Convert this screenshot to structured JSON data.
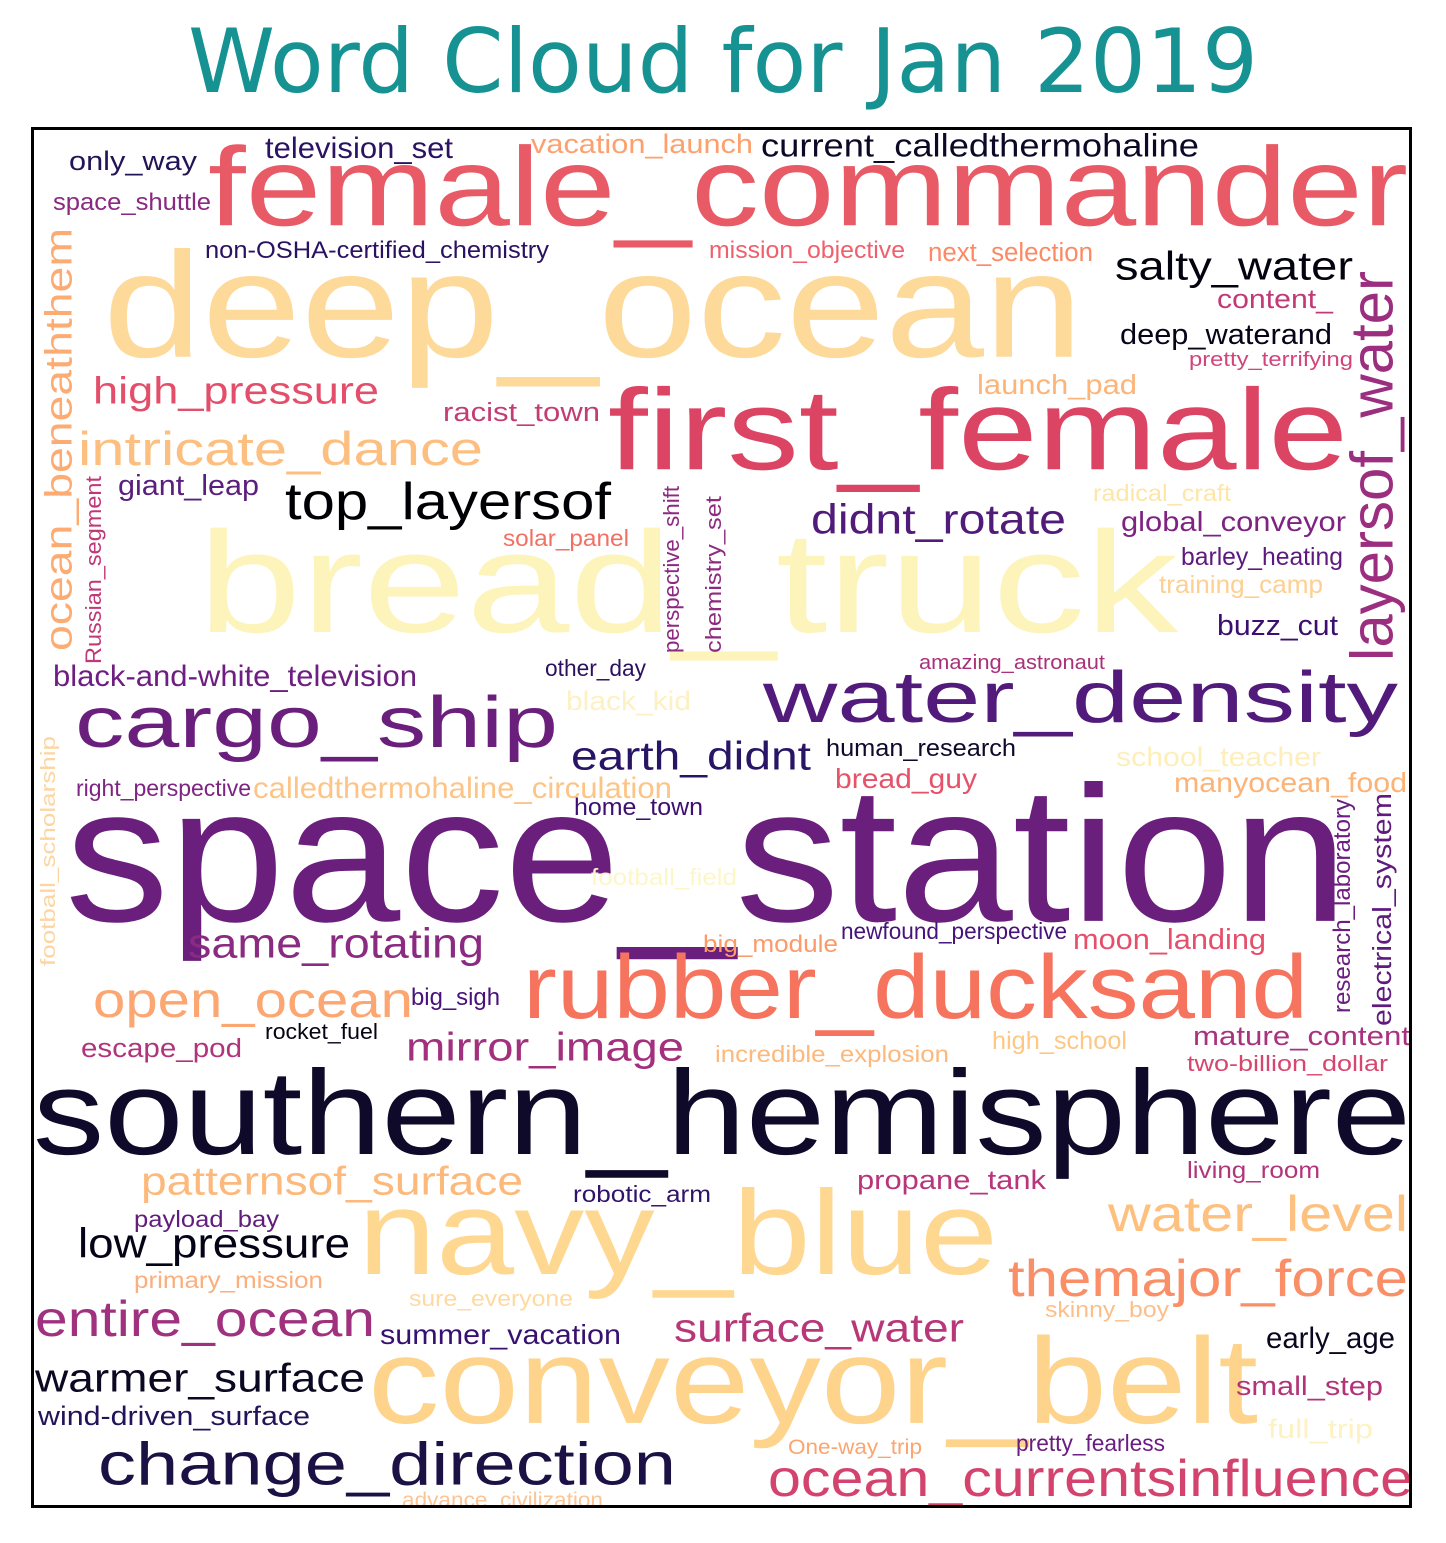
{
  "title": "Word Cloud for Jan 2019",
  "words": [
    {
      "text": "female_commander",
      "color": "#e85a66"
    },
    {
      "text": "deep_ocean",
      "color": "#fdd99a"
    },
    {
      "text": "first_female",
      "color": "#dc4463"
    },
    {
      "text": "bread_truck",
      "color": "#fdf4bc"
    },
    {
      "text": "space_station",
      "color": "#6b1f7d"
    },
    {
      "text": "water_density",
      "color": "#521a7a"
    },
    {
      "text": "cargo_ship",
      "color": "#6a1f7d"
    },
    {
      "text": "rubber_ducksand",
      "color": "#f6735e"
    },
    {
      "text": "southern_hemisphere",
      "color": "#0f0a2a"
    },
    {
      "text": "navy_blue",
      "color": "#fed891"
    },
    {
      "text": "conveyor_belt",
      "color": "#fed38b"
    },
    {
      "text": "change_direction",
      "color": "#1b1144"
    },
    {
      "text": "ocean_currentsinfluence",
      "color": "#d4436e"
    },
    {
      "text": "themajor_force",
      "color": "#f98e67"
    },
    {
      "text": "water_level",
      "color": "#fdc07e"
    },
    {
      "text": "entire_ocean",
      "color": "#a0317e"
    },
    {
      "text": "warmer_surface",
      "color": "#0b0822"
    },
    {
      "text": "low_pressure",
      "color": "#050416"
    },
    {
      "text": "patternsof_surface",
      "color": "#fdb97b"
    },
    {
      "text": "open_ocean",
      "color": "#fca671"
    },
    {
      "text": "same_rotating",
      "color": "#8a2a81"
    },
    {
      "text": "intricate_dance",
      "color": "#fdbf80"
    },
    {
      "text": "high_pressure",
      "color": "#e34f6a"
    },
    {
      "text": "top_layersof",
      "color": "#000004"
    },
    {
      "text": "didnt_rotate",
      "color": "#511b7a"
    },
    {
      "text": "salty_water",
      "color": "#03020f"
    },
    {
      "text": "surface_water",
      "color": "#b73779"
    },
    {
      "text": "mirror_image",
      "color": "#a3307e"
    },
    {
      "text": "earth_didnt",
      "color": "#281565"
    },
    {
      "text": "layersof_water",
      "color": "#9b2e7f"
    },
    {
      "text": "ocean_beneaththem",
      "color": "#fcac72"
    },
    {
      "text": "only_way",
      "color": "#231457"
    },
    {
      "text": "television_set",
      "color": "#2c1263"
    },
    {
      "text": "vacation_launch",
      "color": "#fca16e"
    },
    {
      "text": "current_calledthermohaline",
      "color": "#0c0826"
    },
    {
      "text": "space_shuttle",
      "color": "#8b2981"
    },
    {
      "text": "non-OSHA-certified_chemistry",
      "color": "#2a1161"
    },
    {
      "text": "mission_objective",
      "color": "#f0606c"
    },
    {
      "text": "next_selection",
      "color": "#fb8a64"
    },
    {
      "text": "content_",
      "color": "#c13a77"
    },
    {
      "text": "deep_waterand",
      "color": "#050418"
    },
    {
      "text": "pretty_terrifying",
      "color": "#d1457a"
    },
    {
      "text": "launch_pad",
      "color": "#fdb479"
    },
    {
      "text": "racist_town",
      "color": "#c23c75"
    },
    {
      "text": "giant_leap",
      "color": "#5a1e7c"
    },
    {
      "text": "radical_craft",
      "color": "#fde6a6"
    },
    {
      "text": "global_conveyor",
      "color": "#7e2382"
    },
    {
      "text": "solar_panel",
      "color": "#f27063"
    },
    {
      "text": "barley_heating",
      "color": "#5d197d"
    },
    {
      "text": "training_camp",
      "color": "#fdcf90"
    },
    {
      "text": "perspective_shift",
      "color": "#8c2981"
    },
    {
      "text": "chemistry_set",
      "color": "#8f2a81"
    },
    {
      "text": "Russian_segment",
      "color": "#c03877"
    },
    {
      "text": "buzz_cut",
      "color": "#3b0f6f"
    },
    {
      "text": "black-and-white_television",
      "color": "#6e1e81"
    },
    {
      "text": "other_day",
      "color": "#2b1160"
    },
    {
      "text": "amazing_astronaut",
      "color": "#a93179"
    },
    {
      "text": "black_kid",
      "color": "#fdf1c4"
    },
    {
      "text": "human_research",
      "color": "#0e0a2b"
    },
    {
      "text": "school_teacher",
      "color": "#fdeeba"
    },
    {
      "text": "right_perspective",
      "color": "#7e2482"
    },
    {
      "text": "calledthermohaline_circulation",
      "color": "#fdc487"
    },
    {
      "text": "bread_guy",
      "color": "#e5526a"
    },
    {
      "text": "manyocean_food",
      "color": "#fcb378"
    },
    {
      "text": "home_town",
      "color": "#3c0f70"
    },
    {
      "text": "football_scholarship",
      "color": "#fdd5a0"
    },
    {
      "text": "research_laboratory",
      "color": "#6c1d80"
    },
    {
      "text": "electrical_system",
      "color": "#5f1a7e"
    },
    {
      "text": "football_field",
      "color": "#fdf6c9"
    },
    {
      "text": "big_module",
      "color": "#fc9a6a"
    },
    {
      "text": "newfound_perspective",
      "color": "#46137a"
    },
    {
      "text": "moon_landing",
      "color": "#e64f6b"
    },
    {
      "text": "big_sigh",
      "color": "#49127a"
    },
    {
      "text": "rocket_fuel",
      "color": "#050413"
    },
    {
      "text": "escape_pod",
      "color": "#b03479"
    },
    {
      "text": "incredible_explosion",
      "color": "#fdb87b"
    },
    {
      "text": "high_school",
      "color": "#fdc784"
    },
    {
      "text": "mature_content",
      "color": "#a8327e"
    },
    {
      "text": "two-billion_dollar",
      "color": "#d8456e"
    },
    {
      "text": "living_room",
      "color": "#b2357a"
    },
    {
      "text": "propane_tank",
      "color": "#b8347b"
    },
    {
      "text": "robotic_arm",
      "color": "#30136a"
    },
    {
      "text": "payload_bay",
      "color": "#611c7d"
    },
    {
      "text": "primary_mission",
      "color": "#fcae7c"
    },
    {
      "text": "sure_everyone",
      "color": "#fed9a0"
    },
    {
      "text": "skinny_boy",
      "color": "#fcbf8a"
    },
    {
      "text": "summer_vacation",
      "color": "#361170"
    },
    {
      "text": "early_age",
      "color": "#0a0720"
    },
    {
      "text": "small_step",
      "color": "#b33379"
    },
    {
      "text": "wind-driven_surface",
      "color": "#231459"
    },
    {
      "text": "full_trip",
      "color": "#fdf2c2"
    },
    {
      "text": "One-way_trip",
      "color": "#fca571"
    },
    {
      "text": "pretty_fearless",
      "color": "#6a1d80"
    },
    {
      "text": "advance_civilization",
      "color": "#fcc493"
    }
  ]
}
